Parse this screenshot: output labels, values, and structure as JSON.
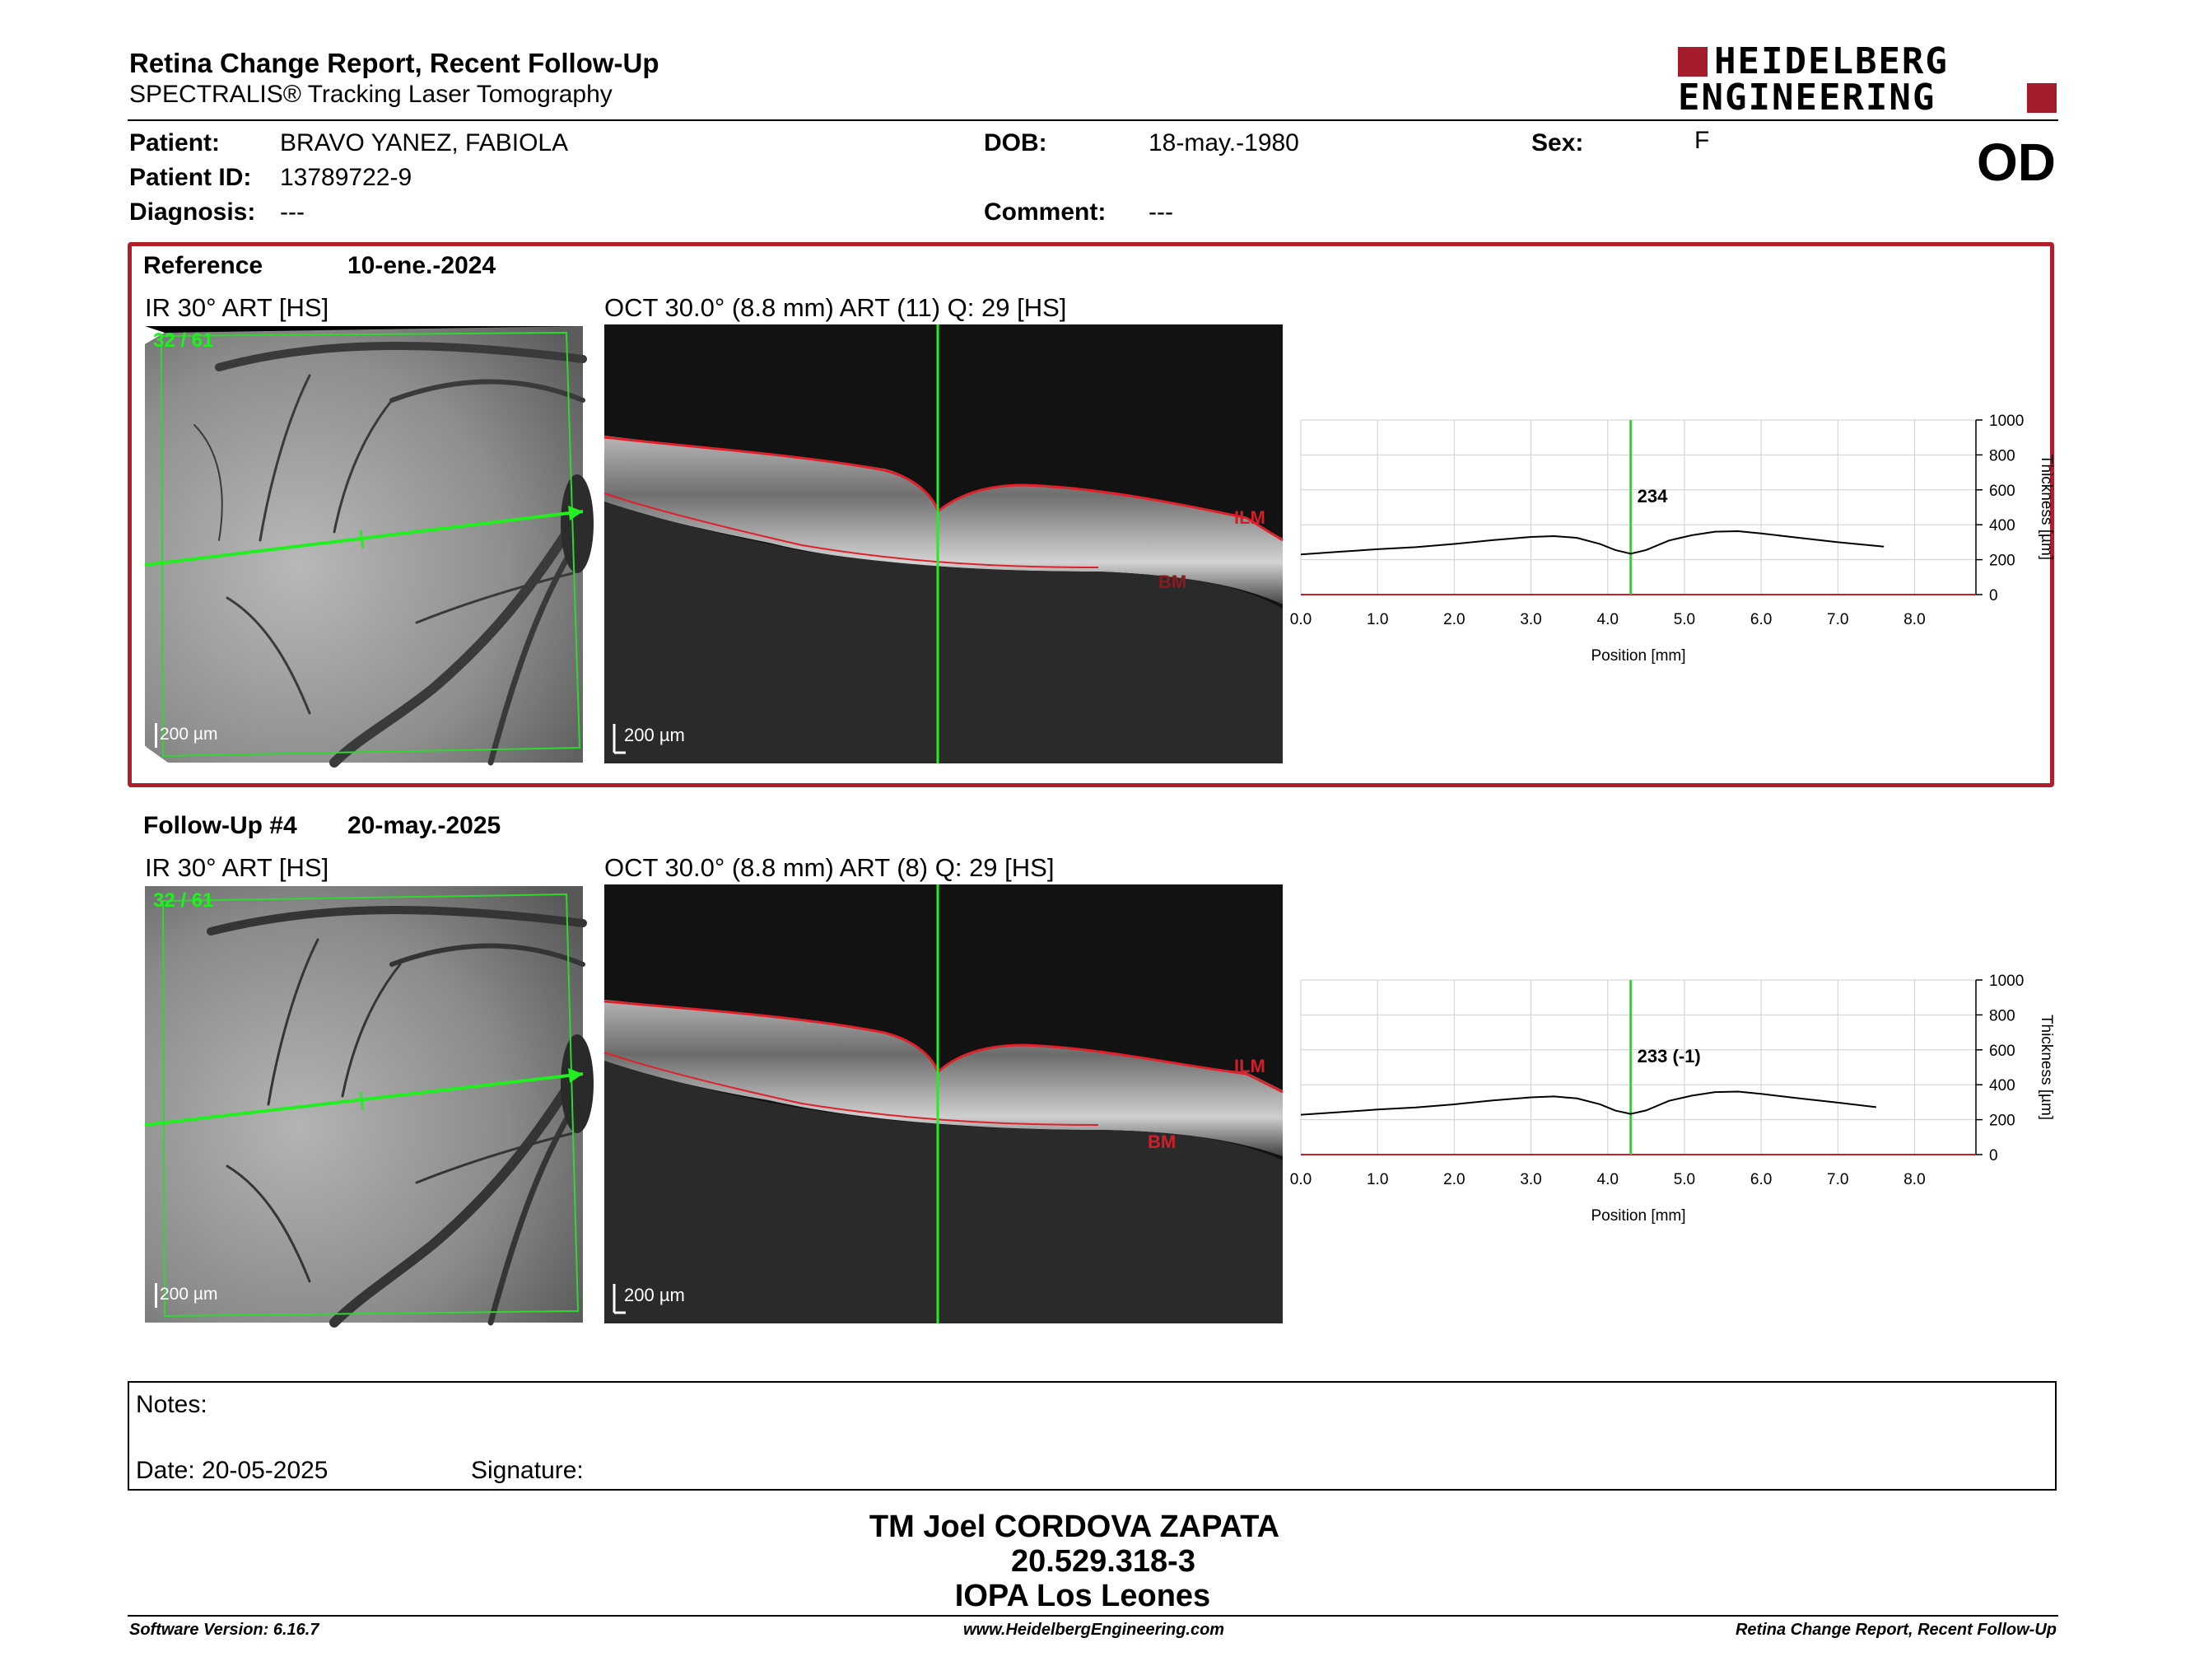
{
  "header": {
    "title": "Retina Change Report, Recent Follow-Up",
    "subtitle": "SPECTRALIS® Tracking Laser Tomography",
    "logo_line1": "HEIDELBERG",
    "logo_line2": "ENGINEERING",
    "eye": "OD"
  },
  "patient": {
    "name_label": "Patient:",
    "name": "BRAVO YANEZ, FABIOLA",
    "id_label": "Patient ID:",
    "id": "13789722-9",
    "diagnosis_label": "Diagnosis:",
    "diagnosis": "---",
    "dob_label": "DOB:",
    "dob": "18-may.-1980",
    "comment_label": "Comment:",
    "comment": "---",
    "sex_label": "Sex:",
    "sex": "F"
  },
  "reference": {
    "label": "Reference",
    "date": "10-ene.-2024",
    "ir_title": "IR 30° ART [HS]",
    "oct_title": "OCT 30.0° (8.8 mm) ART (11) Q: 29 [HS]",
    "scan_index": "32 / 61",
    "scale_ir": "200 µm",
    "scale_oct": "200 µm",
    "ilm": "ILM",
    "bm": "BM"
  },
  "followup": {
    "label": "Follow-Up #4",
    "date": "20-may.-2025",
    "ir_title": "IR 30° ART [HS]",
    "oct_title": "OCT 30.0° (8.8 mm) ART (8) Q: 29 [HS]",
    "scan_index": "32 / 61",
    "scale_ir": "200 µm",
    "scale_oct": "200 µm",
    "ilm": "ILM",
    "bm": "BM"
  },
  "chart_data": [
    {
      "type": "line",
      "xlabel": "Position [mm]",
      "ylabel": "Thickness [µm]",
      "xlim": [
        0,
        8.8
      ],
      "ylim": [
        0,
        1000
      ],
      "xticks": [
        "0.0",
        "1.0",
        "2.0",
        "3.0",
        "4.0",
        "5.0",
        "6.0",
        "7.0",
        "8.0"
      ],
      "yticks": [
        "0",
        "200",
        "400",
        "600",
        "800",
        "1000"
      ],
      "grid": true,
      "cursor_x": 4.3,
      "cursor_label": "234",
      "x": [
        0.0,
        0.5,
        1.0,
        1.5,
        2.0,
        2.5,
        3.0,
        3.3,
        3.6,
        3.9,
        4.1,
        4.3,
        4.5,
        4.8,
        5.1,
        5.4,
        5.7,
        6.0,
        6.5,
        7.0,
        7.6
      ],
      "y": [
        230,
        245,
        260,
        272,
        290,
        312,
        330,
        335,
        325,
        290,
        255,
        234,
        255,
        310,
        340,
        360,
        363,
        350,
        325,
        300,
        275
      ]
    },
    {
      "type": "line",
      "xlabel": "Position [mm]",
      "ylabel": "Thickness [µm]",
      "xlim": [
        0,
        8.8
      ],
      "ylim": [
        0,
        1000
      ],
      "xticks": [
        "0.0",
        "1.0",
        "2.0",
        "3.0",
        "4.0",
        "5.0",
        "6.0",
        "7.0",
        "8.0"
      ],
      "yticks": [
        "0",
        "200",
        "400",
        "600",
        "800",
        "1000"
      ],
      "grid": true,
      "cursor_x": 4.3,
      "cursor_label": "233 (-1)",
      "x": [
        0.0,
        0.5,
        1.0,
        1.5,
        2.0,
        2.5,
        3.0,
        3.3,
        3.6,
        3.9,
        4.1,
        4.3,
        4.5,
        4.8,
        5.1,
        5.4,
        5.7,
        6.0,
        6.5,
        7.0,
        7.5
      ],
      "y": [
        228,
        243,
        258,
        270,
        288,
        310,
        328,
        333,
        322,
        288,
        252,
        233,
        253,
        308,
        338,
        358,
        361,
        348,
        322,
        298,
        272
      ]
    }
  ],
  "notes": {
    "label": "Notes:",
    "date_label": "Date: 20-05-2025",
    "signature_label": "Signature:"
  },
  "signer": {
    "line1": "TM Joel CORDOVA ZAPATA",
    "line2": "20.529.318-3",
    "line3": "IOPA Los Leones"
  },
  "footer": {
    "version": "Software Version: 6.16.7",
    "url": "www.HeidelbergEngineering.com",
    "report": "Retina Change Report, Recent Follow-Up"
  },
  "colors": {
    "brand_red": "#a41b2b",
    "box_red": "#b01e2a",
    "scan_green": "#1fe01f",
    "seg_red": "#e0202a"
  }
}
